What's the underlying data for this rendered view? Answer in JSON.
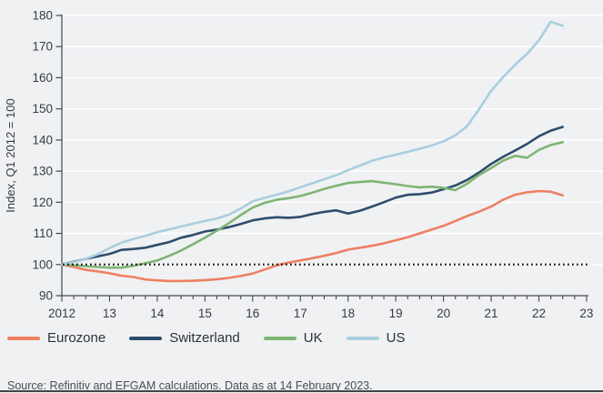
{
  "source_note": "Source: Refinitiv and EFGAM calculations. Data as at 14 February 2023.",
  "colors": {
    "background": "#f0f1f3",
    "gridline": "#ffffff",
    "axis": "#43484d",
    "tick_text": "#373c41",
    "dotted_reference": "#141414",
    "eurozone": "#ef8062",
    "switzerland": "#2f4d6d",
    "uk": "#7fb574",
    "us": "#a9cfe1"
  },
  "legend": {
    "items": [
      {
        "label": "Eurozone",
        "slug": "eurozone",
        "color": "#ef8062"
      },
      {
        "label": "Switzerland",
        "slug": "switzerland",
        "color": "#2f4d6d"
      },
      {
        "label": "UK",
        "slug": "uk",
        "color": "#7fb574"
      },
      {
        "label": "US",
        "slug": "us",
        "color": "#a9cedf"
      }
    ]
  },
  "chart_data": {
    "type": "line",
    "title": "",
    "xlabel": "",
    "ylabel": "Index, Q1 2012 = 100",
    "ylim": [
      90,
      180
    ],
    "xlim": [
      2012,
      2023
    ],
    "grid": "horizontal white gridlines every 10 units",
    "legend_position": "bottom",
    "reference_line": {
      "value": 100,
      "style": "dotted",
      "color": "#141414"
    },
    "y_ticks": [
      {
        "value": 90,
        "label": "90"
      },
      {
        "value": 100,
        "label": "100"
      },
      {
        "value": 110,
        "label": "110"
      },
      {
        "value": 120,
        "label": "120"
      },
      {
        "value": 130,
        "label": "130"
      },
      {
        "value": 140,
        "label": "140"
      },
      {
        "value": 150,
        "label": "150"
      },
      {
        "value": 160,
        "label": "160"
      },
      {
        "value": 170,
        "label": "170"
      },
      {
        "value": 180,
        "label": "180"
      }
    ],
    "x_ticks": [
      {
        "value": 2012,
        "label": "2012"
      },
      {
        "value": 2013,
        "label": "13"
      },
      {
        "value": 2014,
        "label": "14"
      },
      {
        "value": 2015,
        "label": "15"
      },
      {
        "value": 2016,
        "label": "16"
      },
      {
        "value": 2017,
        "label": "17"
      },
      {
        "value": 2018,
        "label": "18"
      },
      {
        "value": 2019,
        "label": "19"
      },
      {
        "value": 2020,
        "label": "20"
      },
      {
        "value": 2021,
        "label": "21"
      },
      {
        "value": 2022,
        "label": "22"
      },
      {
        "value": 2023,
        "label": "23"
      }
    ],
    "minor_tick_step_years": 0.25,
    "x": [
      2012.0,
      2012.25,
      2012.5,
      2012.75,
      2013.0,
      2013.25,
      2013.5,
      2013.75,
      2014.0,
      2014.25,
      2014.5,
      2014.75,
      2015.0,
      2015.25,
      2015.5,
      2015.75,
      2016.0,
      2016.25,
      2016.5,
      2016.75,
      2017.0,
      2017.25,
      2017.5,
      2017.75,
      2018.0,
      2018.25,
      2018.5,
      2018.75,
      2019.0,
      2019.25,
      2019.5,
      2019.75,
      2020.0,
      2020.25,
      2020.5,
      2020.75,
      2021.0,
      2021.25,
      2021.5,
      2021.75,
      2022.0,
      2022.25,
      2022.5
    ],
    "series": [
      {
        "name": "Eurozone",
        "color": "#ef8062",
        "values": [
          100,
          99.2,
          98.3,
          97.8,
          97.2,
          96.4,
          96,
          95.2,
          94.9,
          94.7,
          94.7,
          94.8,
          95,
          95.3,
          95.7,
          96.3,
          97.1,
          98.4,
          99.7,
          100.6,
          101.3,
          102,
          102.8,
          103.7,
          104.8,
          105.4,
          106,
          106.8,
          107.8,
          108.8,
          110,
          111.2,
          112.4,
          114,
          115.6,
          117,
          118.6,
          120.8,
          122.4,
          123.2,
          123.6,
          123.4,
          122.2
        ]
      },
      {
        "name": "Switzerland",
        "color": "#2f4d6d",
        "values": [
          100,
          100.9,
          101.8,
          102.6,
          103.4,
          104.7,
          105,
          105.4,
          106.3,
          107.2,
          108.6,
          109.5,
          110.6,
          111.2,
          112,
          113,
          114.2,
          114.8,
          115.2,
          115,
          115.3,
          116.2,
          116.9,
          117.4,
          116.4,
          117.3,
          118.6,
          120,
          121.5,
          122.4,
          122.6,
          123.1,
          124.2,
          125.4,
          127.2,
          129.6,
          132.3,
          134.6,
          136.6,
          138.7,
          141.2,
          143,
          144.2
        ]
      },
      {
        "name": "UK",
        "color": "#7fb574",
        "values": [
          100,
          99.8,
          99.5,
          99.2,
          99,
          99,
          99.6,
          100.4,
          101.3,
          102.8,
          104.5,
          106.5,
          108.6,
          110.9,
          113.3,
          115.9,
          118.3,
          119.8,
          120.8,
          121.3,
          122,
          123.1,
          124.3,
          125.3,
          126.2,
          126.5,
          126.8,
          126.3,
          125.8,
          125.2,
          124.8,
          125,
          124.6,
          123.9,
          126,
          128.8,
          131,
          133.4,
          134.9,
          134.3,
          136.8,
          138.4,
          139.3
        ]
      },
      {
        "name": "US",
        "color": "#a9cedf",
        "values": [
          100,
          100.8,
          101.8,
          103.3,
          105.3,
          107,
          108.2,
          109.2,
          110.4,
          111.3,
          112.2,
          113.1,
          114,
          114.8,
          116,
          118,
          120.3,
          121.4,
          122.4,
          123.5,
          124.8,
          126.1,
          127.4,
          128.7,
          130.3,
          131.8,
          133.3,
          134.4,
          135.3,
          136.2,
          137.2,
          138.2,
          139.6,
          141.5,
          144.5,
          150,
          155.8,
          160.2,
          164.2,
          167.6,
          172,
          178,
          176.7
        ]
      }
    ]
  }
}
